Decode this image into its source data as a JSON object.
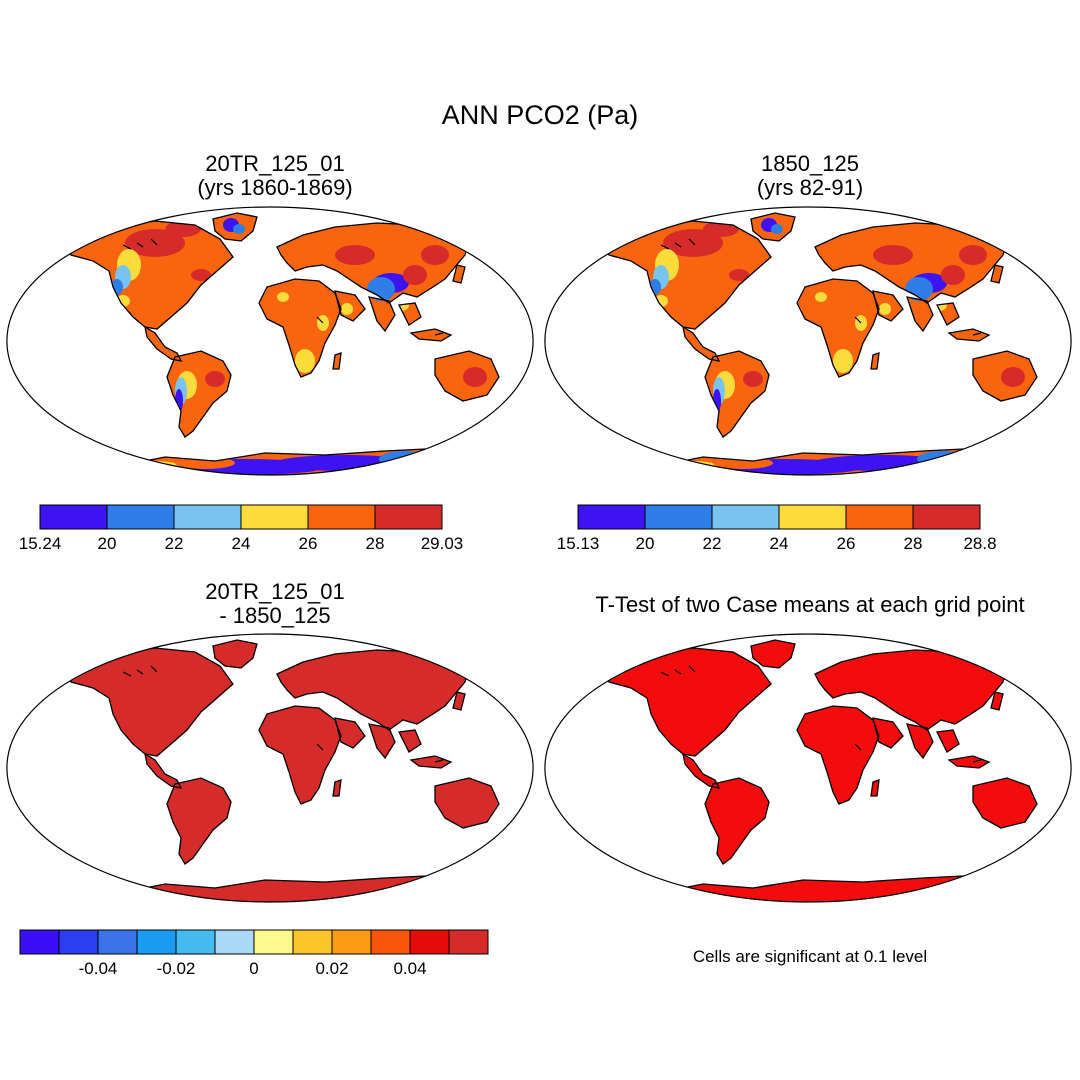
{
  "main_title": "ANN PCO2 (Pa)",
  "colors": {
    "continuous": [
      "#3d13f2",
      "#2f7de6",
      "#78c3f0",
      "#fbdc3a",
      "#f9650e",
      "#d62b2b"
    ],
    "difference": [
      "#3b0ff5",
      "#2b3ef0",
      "#3b74ea",
      "#1a9cf2",
      "#45bbf0",
      "#a9d9f5",
      "#fdf98c",
      "#fcc62a",
      "#fc9b14",
      "#f7560c",
      "#e40b0b",
      "#d62b2b"
    ],
    "significance": "#f20c0c",
    "difference_fill": "#d62b2b",
    "outline": "#000000"
  },
  "chart_data": [
    {
      "id": "panel-1",
      "type": "heatmap",
      "projection": "Robinson",
      "title_line1": "20TR_125_01",
      "title_line2": "(yrs 1860-1869)",
      "variable": "PCO2",
      "units": "Pa",
      "colorbar": {
        "labels": [
          "15.24",
          "20",
          "22",
          "24",
          "26",
          "28",
          "29.03"
        ],
        "min": 15.24,
        "max": 29.03,
        "levels": [
          20,
          22,
          24,
          26,
          28
        ]
      }
    },
    {
      "id": "panel-2",
      "type": "heatmap",
      "projection": "Robinson",
      "title_line1": "1850_125",
      "title_line2": "(yrs 82-91)",
      "variable": "PCO2",
      "units": "Pa",
      "colorbar": {
        "labels": [
          "15.13",
          "20",
          "22",
          "24",
          "26",
          "28",
          "28.8"
        ],
        "min": 15.13,
        "max": 28.8,
        "levels": [
          20,
          22,
          24,
          26,
          28
        ]
      }
    },
    {
      "id": "panel-3",
      "type": "heatmap",
      "projection": "Robinson",
      "title_line1": "20TR_125_01",
      "title_line2": "- 1850_125",
      "colorbar": {
        "labels": [
          "-0.04",
          "-0.02",
          "0",
          "0.02",
          "0.04"
        ],
        "levels": [
          -0.05,
          -0.04,
          -0.03,
          -0.02,
          -0.01,
          0,
          0.01,
          0.02,
          0.03,
          0.04,
          0.05
        ]
      }
    },
    {
      "id": "panel-4",
      "type": "heatmap",
      "projection": "Robinson",
      "title_line1": "T-Test of two Case means at each grid point",
      "note": "Cells are significant at 0.1 level",
      "significance_level": 0.1
    }
  ]
}
